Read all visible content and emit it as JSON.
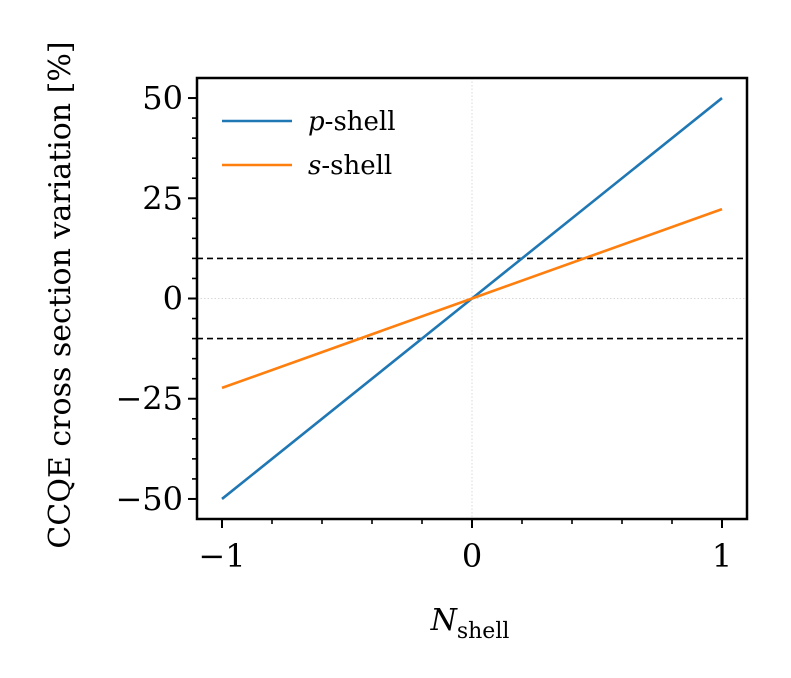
{
  "chart_data": {
    "type": "line",
    "x": [
      -1,
      0,
      1
    ],
    "series": [
      {
        "name_prefix": "p",
        "name_suffix": "-shell",
        "color": "#1f77b4",
        "values": [
          -50,
          0,
          50
        ]
      },
      {
        "name_prefix": "s",
        "name_suffix": "-shell",
        "color": "#ff7f0e",
        "values": [
          -22.3,
          0,
          22.3
        ]
      }
    ],
    "xlabel_main": "N",
    "xlabel_sub": "shell",
    "ylabel": "CCQE cross section variation [%]",
    "xlim": [
      -1.1,
      1.1
    ],
    "ylim": [
      -55,
      55
    ],
    "xticks": [
      -1,
      0,
      1
    ],
    "xtick_labels": [
      "−1",
      "0",
      "1"
    ],
    "yticks": [
      -50,
      -25,
      0,
      25,
      50
    ],
    "ytick_labels": [
      "−50",
      "−25",
      "0",
      "25",
      "50"
    ],
    "hlines": [
      10,
      -10
    ],
    "grid": "origin lines only",
    "legend_position": "top-left"
  }
}
